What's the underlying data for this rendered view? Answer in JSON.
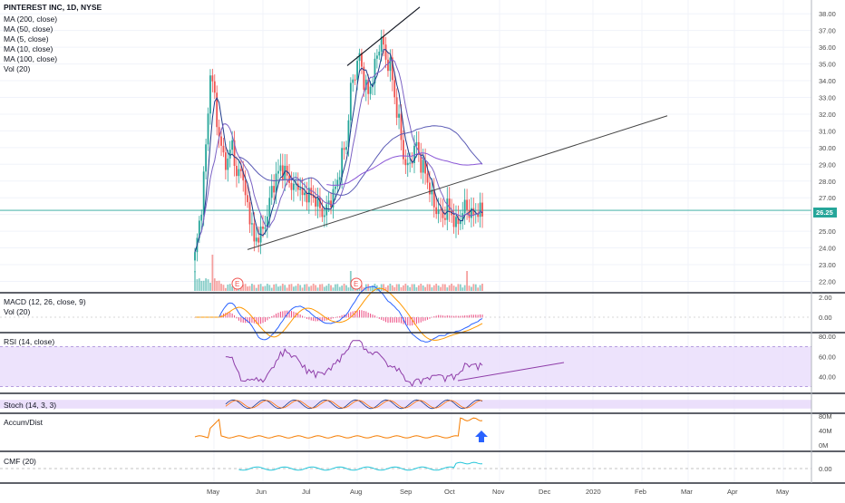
{
  "colors": {
    "up": "#26a69a",
    "down": "#ef5350",
    "ma200": "#5b5bb5",
    "ma50": "#5b5bb5",
    "ma5": "#1e3a8a",
    "ma10": "#7b61c4",
    "ma100": "#8a56d6",
    "rsi": "#8e3ca8",
    "rsi_band": "#e9dcfb",
    "macd": "#2962ff",
    "signal": "#ff9800",
    "hist": "#e91e63",
    "accdist": "#f57c00",
    "cmf": "#26c6da",
    "price_line": "#26a69a",
    "trend": "#131722",
    "arrow": "#2962ff"
  },
  "main_pane": {
    "title": "PINTEREST INC, 1D, NYSE",
    "studies": [
      "MA (200, close)",
      "MA (50, close)",
      "MA (5, close)",
      "MA (10, close)",
      "MA (100, close)",
      "Vol (20)"
    ],
    "last_price_label": "26.25",
    "earnings_markers": [
      "E",
      "E"
    ]
  },
  "macd_pane": {
    "title": "MACD (12, 26, close, 9)",
    "subtitle": "Vol (20)"
  },
  "rsi_pane": {
    "title": "RSI (14, close)"
  },
  "stoch_pane": {
    "title": "Stoch (14, 3, 3)"
  },
  "accdist_pane": {
    "title": "Accum/Dist"
  },
  "cmf_pane": {
    "title": "CMF (20)"
  },
  "chart_data": [
    {
      "type": "candlestick",
      "title": "PINTEREST INC, 1D, NYSE",
      "x_labels": [
        "May",
        "Jun",
        "Jul",
        "Aug",
        "Sep",
        "Oct",
        "Nov",
        "Dec",
        "2020",
        "Feb",
        "Mar",
        "Apr",
        "May"
      ],
      "y_ticks": [
        22,
        23,
        24,
        25,
        26,
        27,
        28,
        29,
        30,
        31,
        32,
        33,
        34,
        35,
        36,
        37,
        38
      ],
      "ylim": [
        21.7,
        38.5
      ],
      "last_price": 26.25,
      "price_path": [
        [
          0,
          23.5
        ],
        [
          3,
          26.5
        ],
        [
          5,
          30.0
        ],
        [
          7,
          34.5
        ],
        [
          9,
          33.0
        ],
        [
          11,
          30.5
        ],
        [
          13,
          29.5
        ],
        [
          15,
          29.0
        ],
        [
          17,
          30.5
        ],
        [
          19,
          28.0
        ],
        [
          21,
          29.0
        ],
        [
          23,
          27.0
        ],
        [
          25,
          26.0
        ],
        [
          27,
          24.3
        ],
        [
          29,
          24.8
        ],
        [
          31,
          25.0
        ],
        [
          33,
          26.0
        ],
        [
          35,
          27.5
        ],
        [
          37,
          28.2
        ],
        [
          39,
          28.8
        ],
        [
          41,
          28.5
        ],
        [
          43,
          28.0
        ],
        [
          45,
          27.5
        ],
        [
          47,
          27.9
        ],
        [
          49,
          27.0
        ],
        [
          51,
          27.3
        ],
        [
          53,
          27.1
        ],
        [
          55,
          26.9
        ],
        [
          57,
          26.3
        ],
        [
          59,
          26.0
        ],
        [
          61,
          26.7
        ],
        [
          63,
          27.2
        ],
        [
          65,
          28.0
        ],
        [
          67,
          29.5
        ],
        [
          69,
          30.2
        ],
        [
          71,
          33.5
        ],
        [
          73,
          34.5
        ],
        [
          75,
          35.5
        ],
        [
          77,
          34.0
        ],
        [
          79,
          33.2
        ],
        [
          81,
          34.2
        ],
        [
          83,
          35.5
        ],
        [
          85,
          36.6
        ],
        [
          87,
          35.2
        ],
        [
          89,
          35.0
        ],
        [
          91,
          33.0
        ],
        [
          93,
          31.5
        ],
        [
          95,
          29.5
        ],
        [
          97,
          28.7
        ],
        [
          99,
          29.5
        ],
        [
          101,
          30.2
        ],
        [
          103,
          29.0
        ],
        [
          105,
          28.5
        ],
        [
          107,
          27.5
        ],
        [
          109,
          26.5
        ],
        [
          111,
          26.2
        ],
        [
          113,
          25.8
        ],
        [
          115,
          26.5
        ],
        [
          117,
          26.0
        ],
        [
          119,
          25.3
        ],
        [
          121,
          25.8
        ],
        [
          123,
          26.5
        ],
        [
          125,
          26.2
        ],
        [
          127,
          25.9
        ],
        [
          129,
          26.3
        ],
        [
          131,
          26.0
        ]
      ],
      "series": [
        {
          "name": "MA (5, close)",
          "values": []
        },
        {
          "name": "MA (10, close)",
          "values": []
        },
        {
          "name": "MA (50, close)",
          "values": []
        },
        {
          "name": "MA (100, close)",
          "values": []
        },
        {
          "name": "MA (200, close)",
          "values": []
        }
      ],
      "volume_spikes": [
        0,
        8,
        71,
        124
      ],
      "earnings_at": [
        19,
        70
      ]
    },
    {
      "type": "line",
      "title": "MACD (12, 26, close, 9)",
      "y_ticks": [
        2.0,
        0.0
      ],
      "ylim": [
        -0.9,
        2.1
      ]
    },
    {
      "type": "line",
      "title": "RSI (14, close)",
      "y_ticks": [
        80.0,
        60.0,
        40.0
      ],
      "ylim": [
        27,
        82
      ],
      "band": [
        30,
        70
      ]
    },
    {
      "type": "line",
      "title": "Stoch (14, 3, 3)",
      "ylim": [
        0,
        100
      ]
    },
    {
      "type": "line",
      "title": "Accum/Dist",
      "y_ticks": [
        "80M",
        "40M",
        "0M"
      ],
      "ylim": [
        -20,
        100
      ]
    },
    {
      "type": "line",
      "title": "CMF (20)",
      "y_ticks": [
        0.0
      ],
      "ylim": [
        -0.3,
        0.3
      ]
    }
  ]
}
